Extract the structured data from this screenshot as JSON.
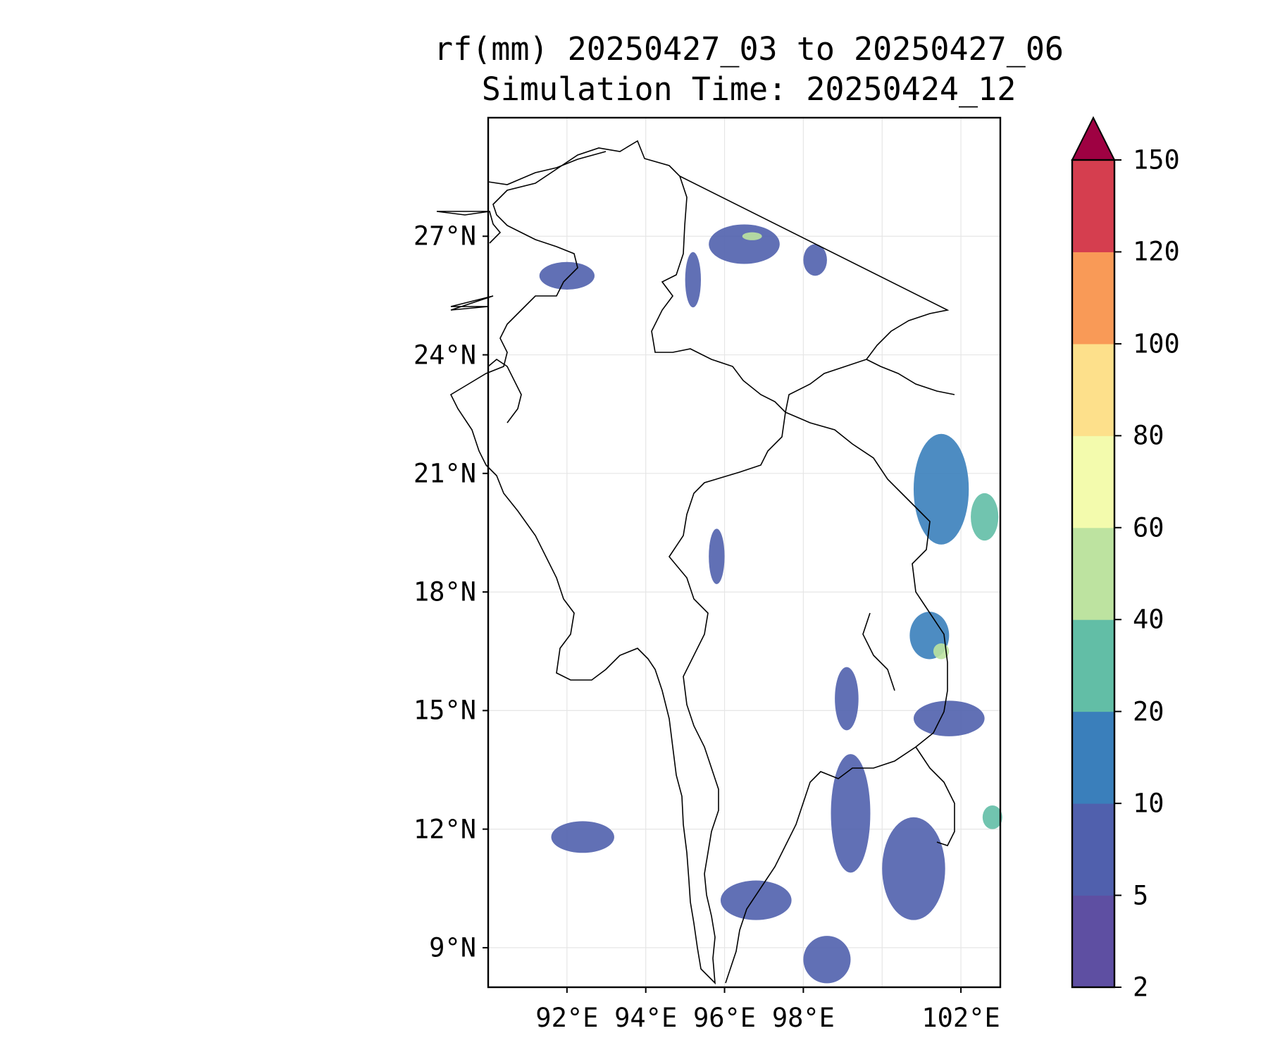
{
  "title": {
    "line1": "rf(mm) 20250427_03 to 20250427_06",
    "line2": "Simulation Time: 20250424_12"
  },
  "map": {
    "lon_range": [
      90.0,
      103.0
    ],
    "lat_range": [
      8.0,
      30.0
    ],
    "gridlines": true,
    "coastlines_and_borders": true,
    "lat_ticks": [
      {
        "value": 9,
        "label": "9°N"
      },
      {
        "value": 12,
        "label": "12°N"
      },
      {
        "value": 15,
        "label": "15°N"
      },
      {
        "value": 18,
        "label": "18°N"
      },
      {
        "value": 21,
        "label": "21°N"
      },
      {
        "value": 24,
        "label": "24°N"
      },
      {
        "value": 27,
        "label": "27°N"
      }
    ],
    "lon_ticks": [
      {
        "value": 92,
        "label": "92°E"
      },
      {
        "value": 94,
        "label": "94°E"
      },
      {
        "value": 96,
        "label": "96°E"
      },
      {
        "value": 98,
        "label": "98°E"
      },
      {
        "value": 102,
        "label": "102°E"
      }
    ],
    "lon_grid": [
      92,
      94,
      96,
      98,
      100,
      102
    ],
    "rain_areas": [
      {
        "lon": 92.0,
        "lat": 26.0,
        "rlon": 0.7,
        "rlat": 0.35,
        "level": 1
      },
      {
        "lon": 96.5,
        "lat": 26.8,
        "rlon": 0.9,
        "rlat": 0.5,
        "level": 1
      },
      {
        "lon": 96.7,
        "lat": 27.0,
        "rlon": 0.25,
        "rlat": 0.1,
        "level": 4
      },
      {
        "lon": 95.2,
        "lat": 25.9,
        "rlon": 0.2,
        "rlat": 0.7,
        "level": 1
      },
      {
        "lon": 98.3,
        "lat": 26.4,
        "rlon": 0.3,
        "rlat": 0.4,
        "level": 1
      },
      {
        "lon": 101.5,
        "lat": 20.6,
        "rlon": 0.7,
        "rlat": 1.4,
        "level": 2
      },
      {
        "lon": 102.6,
        "lat": 19.9,
        "rlon": 0.35,
        "rlat": 0.6,
        "level": 3
      },
      {
        "lon": 101.2,
        "lat": 16.9,
        "rlon": 0.5,
        "rlat": 0.6,
        "level": 2
      },
      {
        "lon": 101.5,
        "lat": 16.5,
        "rlon": 0.2,
        "rlat": 0.2,
        "level": 4
      },
      {
        "lon": 101.7,
        "lat": 14.8,
        "rlon": 0.9,
        "rlat": 0.45,
        "level": 1
      },
      {
        "lon": 99.1,
        "lat": 15.3,
        "rlon": 0.3,
        "rlat": 0.8,
        "level": 1
      },
      {
        "lon": 99.2,
        "lat": 12.4,
        "rlon": 0.5,
        "rlat": 1.5,
        "level": 1
      },
      {
        "lon": 100.8,
        "lat": 11.0,
        "rlon": 0.8,
        "rlat": 1.3,
        "level": 1
      },
      {
        "lon": 102.8,
        "lat": 12.3,
        "rlon": 0.25,
        "rlat": 0.3,
        "level": 3
      },
      {
        "lon": 96.8,
        "lat": 10.2,
        "rlon": 0.9,
        "rlat": 0.5,
        "level": 1
      },
      {
        "lon": 98.6,
        "lat": 8.7,
        "rlon": 0.6,
        "rlat": 0.6,
        "level": 1
      },
      {
        "lon": 95.8,
        "lat": 18.9,
        "rlon": 0.2,
        "rlat": 0.7,
        "level": 1
      },
      {
        "lon": 92.4,
        "lat": 11.8,
        "rlon": 0.8,
        "rlat": 0.4,
        "level": 1
      }
    ]
  },
  "colorbar": {
    "boundaries": [
      2,
      5,
      10,
      20,
      40,
      60,
      80,
      100,
      120,
      150
    ],
    "colors": [
      "#5e4fa2",
      "#5060ad",
      "#3a7fbb",
      "#62bea6",
      "#bde3a0",
      "#f3fbad",
      "#fde08b",
      "#f99a57",
      "#d53e4f"
    ],
    "extend_color": "#9e0142",
    "extend": "max",
    "tick_labels": [
      "2",
      "5",
      "10",
      "20",
      "40",
      "60",
      "80",
      "100",
      "120",
      "150"
    ]
  }
}
